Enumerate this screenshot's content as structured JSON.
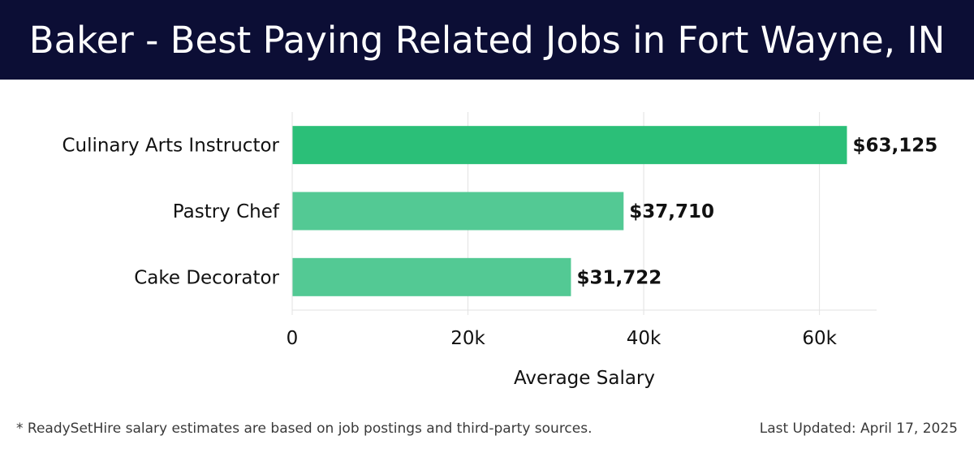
{
  "header": {
    "title": "Baker - Best Paying Related Jobs in Fort Wayne, IN"
  },
  "footer": {
    "note": "* ReadySetHire salary estimates are based on job postings and third-party sources.",
    "updated": "Last Updated: April 17, 2025"
  },
  "colors": {
    "header_bg": "#0c0e35",
    "bar_primary": "#2bbf78",
    "bar_secondary": "#53c994",
    "grid": "#e2e2e2",
    "text": "#111111"
  },
  "chart_data": {
    "type": "bar",
    "orientation": "horizontal",
    "categories": [
      "Culinary Arts Instructor",
      "Pastry Chef",
      "Cake Decorator"
    ],
    "values": [
      63125,
      37710,
      31722
    ],
    "value_labels": [
      "$63,125",
      "$37,710",
      "$31,722"
    ],
    "xlabel": "Average Salary",
    "ylabel": "",
    "xlim": [
      0,
      66500
    ],
    "x_ticks": [
      0,
      20000,
      40000,
      60000
    ],
    "x_tick_labels": [
      "0",
      "20k",
      "40k",
      "60k"
    ],
    "grid": true
  }
}
